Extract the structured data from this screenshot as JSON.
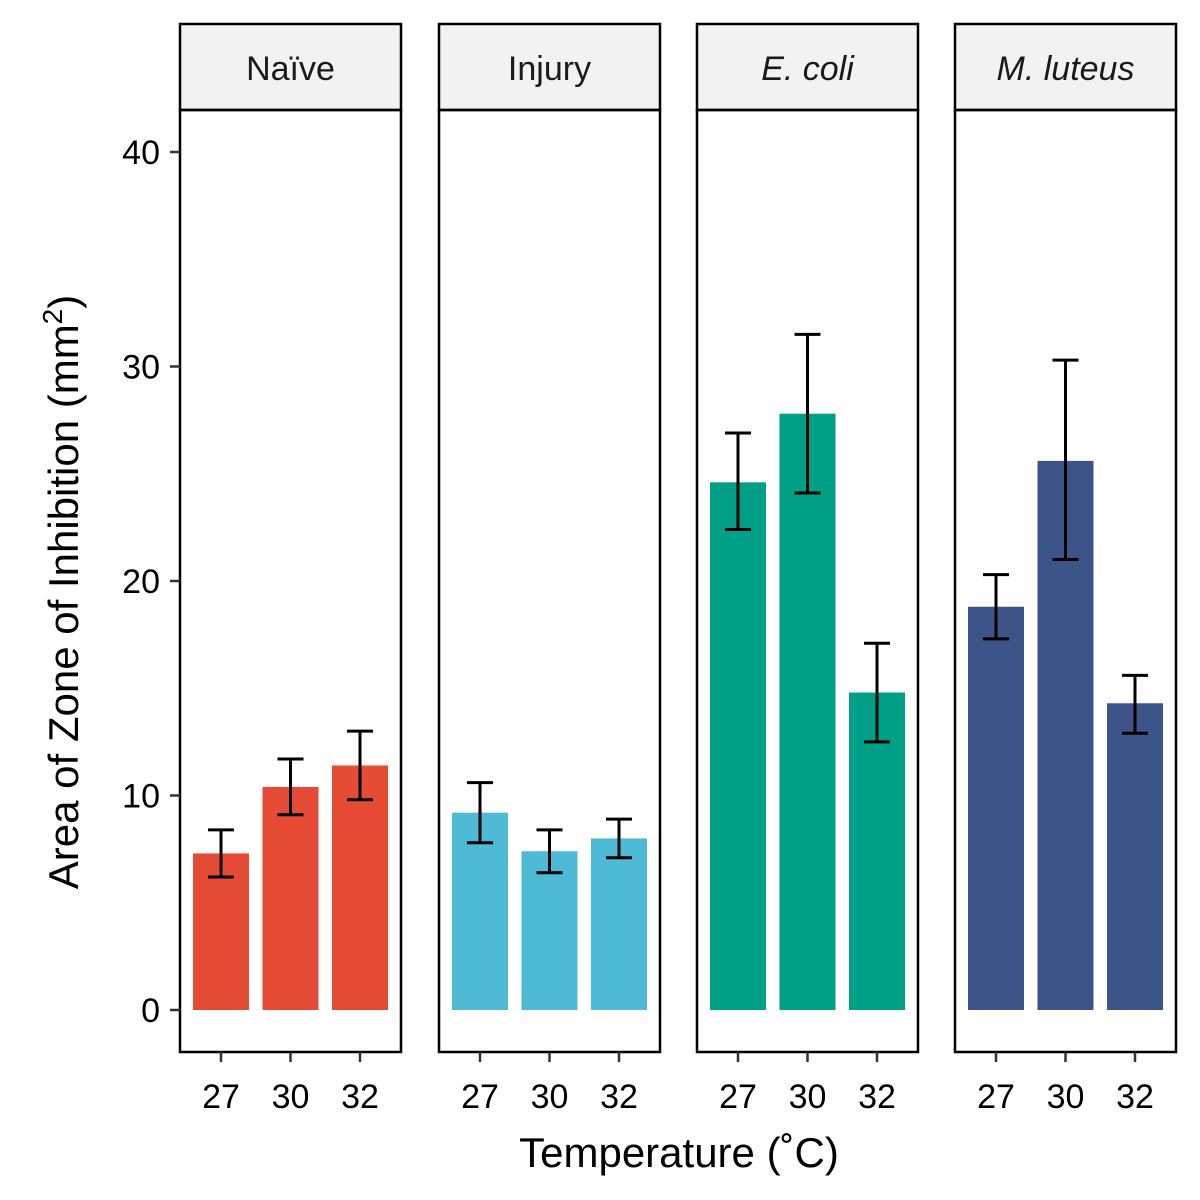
{
  "chart_data": {
    "type": "bar",
    "xlabel": "Temperature (˚C)",
    "ylabel_main": "Area of Zone of Inhibition (mm",
    "ylabel_sup": "2",
    "ylabel_close": ")",
    "ylim": [
      -2,
      42
    ],
    "yticks": [
      0,
      10,
      20,
      30,
      40
    ],
    "categories": [
      "27",
      "30",
      "32"
    ],
    "facets": [
      {
        "name": "Naïve",
        "italic": false,
        "color": "#E64B35",
        "values": [
          7.3,
          10.4,
          11.4
        ],
        "lower": [
          6.2,
          9.1,
          9.8
        ],
        "upper": [
          8.4,
          11.7,
          13.0
        ]
      },
      {
        "name": "Injury",
        "italic": false,
        "color": "#4DBBD5",
        "values": [
          9.2,
          7.4,
          8.0
        ],
        "lower": [
          7.8,
          6.4,
          7.1
        ],
        "upper": [
          10.6,
          8.4,
          8.9
        ]
      },
      {
        "name": "E. coli",
        "italic": true,
        "color": "#00A087",
        "values": [
          24.6,
          27.8,
          14.8
        ],
        "lower": [
          22.4,
          24.1,
          12.5
        ],
        "upper": [
          26.9,
          31.5,
          17.1
        ]
      },
      {
        "name": "M. luteus",
        "italic": true,
        "color": "#3C5488",
        "values": [
          18.8,
          25.6,
          14.3
        ],
        "lower": [
          17.3,
          21.0,
          12.9
        ],
        "upper": [
          20.3,
          30.3,
          15.6
        ]
      }
    ],
    "grid": false,
    "legend": "none"
  }
}
